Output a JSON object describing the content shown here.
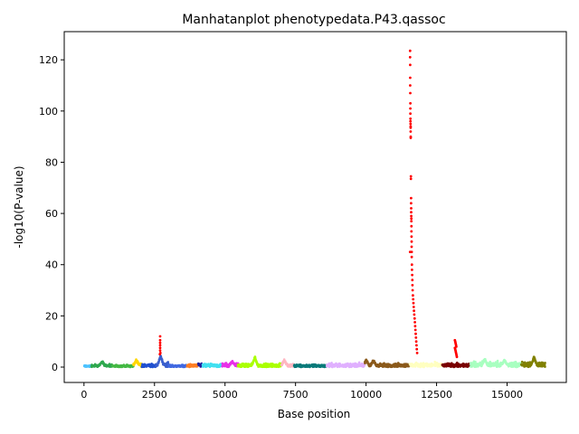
{
  "chart_data": {
    "type": "scatter",
    "title": "Manhatanplot phenotypedata.P43.qassoc",
    "xlabel": "Base position",
    "ylabel": "-log10(P-value)",
    "xlim": [
      -700,
      17100
    ],
    "ylim": [
      -6,
      131
    ],
    "xticks": [
      0,
      2500,
      5000,
      7500,
      10000,
      12500,
      15000
    ],
    "yticks": [
      0,
      20,
      40,
      60,
      80,
      100,
      120
    ],
    "grid": false,
    "segments": [
      {
        "start": 0,
        "end": 260,
        "color": "#4dc3ff",
        "base": 0.4,
        "amp": 0.5
      },
      {
        "start": 260,
        "end": 1000,
        "color": "#2fa84f",
        "base": 0.5,
        "amp": 0.9,
        "peaks": [
          [
            630,
            2.5
          ]
        ]
      },
      {
        "start": 1000,
        "end": 1750,
        "color": "#44b844",
        "base": 0.4,
        "amp": 0.6
      },
      {
        "start": 1750,
        "end": 2050,
        "color": "#ffd700",
        "base": 1.0,
        "amp": 1.2,
        "peaks": [
          [
            1850,
            3.0
          ]
        ]
      },
      {
        "start": 2050,
        "end": 2550,
        "color": "#2050d0",
        "base": 0.6,
        "amp": 0.8
      },
      {
        "start": 2550,
        "end": 3000,
        "color": "#3a5fcd",
        "base": 1.0,
        "amp": 1.5,
        "peaks": [
          [
            2710,
            4.5
          ]
        ]
      },
      {
        "start": 3000,
        "end": 3650,
        "color": "#4169e1",
        "base": 0.4,
        "amp": 0.7
      },
      {
        "start": 3650,
        "end": 4050,
        "color": "#ff7f24",
        "base": 0.5,
        "amp": 0.9
      },
      {
        "start": 4050,
        "end": 4200,
        "color": "#1e1e9e",
        "base": 0.8,
        "amp": 1.0
      },
      {
        "start": 4200,
        "end": 4900,
        "color": "#40e0f0",
        "base": 0.6,
        "amp": 0.8
      },
      {
        "start": 4900,
        "end": 5450,
        "color": "#e830e8",
        "base": 0.8,
        "amp": 1.2,
        "peaks": [
          [
            5250,
            2.5
          ]
        ]
      },
      {
        "start": 5450,
        "end": 7000,
        "color": "#aaff00",
        "base": 0.6,
        "amp": 1.0,
        "peaks": [
          [
            6050,
            4.0
          ]
        ]
      },
      {
        "start": 7000,
        "end": 7450,
        "color": "#ffb6c1",
        "base": 0.7,
        "amp": 1.0,
        "peaks": [
          [
            7100,
            3.0
          ]
        ]
      },
      {
        "start": 7450,
        "end": 8600,
        "color": "#0a7a7a",
        "base": 0.5,
        "amp": 0.8
      },
      {
        "start": 8600,
        "end": 9950,
        "color": "#e0b0ff",
        "base": 0.8,
        "amp": 1.0
      },
      {
        "start": 9950,
        "end": 11550,
        "color": "#8b5a1b",
        "base": 0.7,
        "amp": 1.0,
        "peaks": [
          [
            10000,
            3.0
          ],
          [
            10250,
            2.8
          ]
        ]
      },
      {
        "start": 11550,
        "end": 12700,
        "color": "#ffffc0",
        "base": 0.8,
        "amp": 1.2
      },
      {
        "start": 12700,
        "end": 13700,
        "color": "#7a0000",
        "base": 0.8,
        "amp": 1.0
      },
      {
        "start": 13700,
        "end": 15500,
        "color": "#a8ffc0",
        "base": 1.0,
        "amp": 1.5,
        "peaks": [
          [
            14200,
            3.5
          ],
          [
            14900,
            3.0
          ]
        ]
      },
      {
        "start": 15500,
        "end": 16350,
        "color": "#808000",
        "base": 1.0,
        "amp": 1.5,
        "peaks": [
          [
            15950,
            4.0
          ]
        ]
      }
    ],
    "highlight_color": "#ff0000",
    "highlights": [
      [
        2700,
        12.0
      ],
      [
        2700,
        10.5
      ],
      [
        2700,
        9.5
      ],
      [
        2700,
        8.5
      ],
      [
        2700,
        7.5
      ],
      [
        2700,
        6.5
      ],
      [
        2710,
        5.5
      ],
      [
        2690,
        5.0
      ],
      [
        11560,
        123.5
      ],
      [
        11560,
        121.0
      ],
      [
        11565,
        118.0
      ],
      [
        11565,
        113.0
      ],
      [
        11565,
        110.0
      ],
      [
        11568,
        107.0
      ],
      [
        11570,
        103.0
      ],
      [
        11570,
        101.0
      ],
      [
        11572,
        99.0
      ],
      [
        11575,
        97.0
      ],
      [
        11575,
        96.0
      ],
      [
        11578,
        95.0
      ],
      [
        11580,
        94.0
      ],
      [
        11580,
        93.5
      ],
      [
        11582,
        92.0
      ],
      [
        11585,
        90.0
      ],
      [
        11585,
        89.5
      ],
      [
        11590,
        74.5
      ],
      [
        11590,
        73.5
      ],
      [
        11595,
        66.0
      ],
      [
        11597,
        64.0
      ],
      [
        11600,
        62.0
      ],
      [
        11600,
        60.5
      ],
      [
        11602,
        59.0
      ],
      [
        11605,
        58.0
      ],
      [
        11605,
        57.0
      ],
      [
        11608,
        55.0
      ],
      [
        11610,
        53.0
      ],
      [
        11612,
        51.0
      ],
      [
        11615,
        49.0
      ],
      [
        11615,
        47.0
      ],
      [
        11560,
        45.0
      ],
      [
        11618,
        45.0
      ],
      [
        11620,
        43.0
      ],
      [
        11625,
        40.0
      ],
      [
        11630,
        38.0
      ],
      [
        11635,
        36.0
      ],
      [
        11640,
        34.0
      ],
      [
        11645,
        32.0
      ],
      [
        11650,
        30.0
      ],
      [
        11660,
        28.0
      ],
      [
        11670,
        26.5
      ],
      [
        11680,
        25.0
      ],
      [
        11690,
        23.5
      ],
      [
        11700,
        22.0
      ],
      [
        11710,
        20.5
      ],
      [
        11720,
        19.0
      ],
      [
        11730,
        17.5
      ],
      [
        11740,
        16.0
      ],
      [
        11750,
        14.5
      ],
      [
        11760,
        13.0
      ],
      [
        11770,
        11.5
      ],
      [
        11780,
        10.0
      ],
      [
        11790,
        8.5
      ],
      [
        11800,
        7.0
      ],
      [
        11810,
        5.5
      ],
      [
        13150,
        10.5
      ],
      [
        13160,
        10.0
      ],
      [
        13170,
        9.5
      ],
      [
        13180,
        9.0
      ],
      [
        13190,
        8.5
      ],
      [
        13200,
        8.0
      ],
      [
        13150,
        7.5
      ],
      [
        13160,
        7.0
      ],
      [
        13170,
        6.5
      ],
      [
        13180,
        6.0
      ],
      [
        13190,
        5.5
      ],
      [
        13200,
        5.0
      ],
      [
        13210,
        4.5
      ],
      [
        13220,
        4.0
      ]
    ]
  }
}
